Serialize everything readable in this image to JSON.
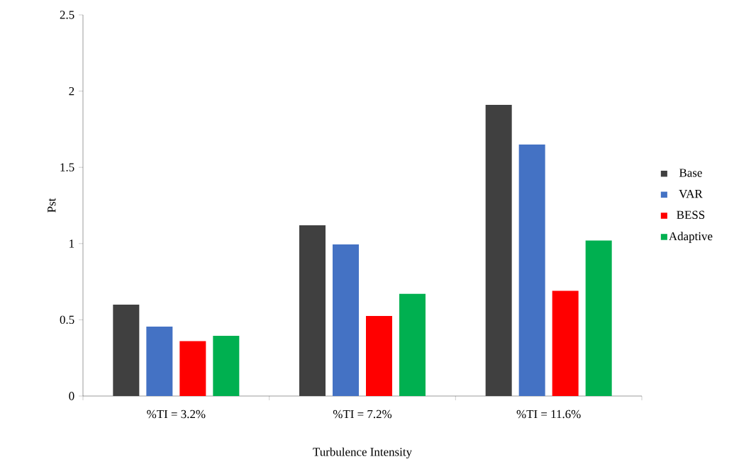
{
  "chart_data": {
    "type": "bar",
    "xlabel": "Turbulence Intensity",
    "ylabel": "Pst",
    "categories": [
      "%TI = 3.2%",
      "%TI = 7.2%",
      "%TI = 11.6%"
    ],
    "series": [
      {
        "name": "Base",
        "color": "#404040",
        "values": [
          0.6,
          1.12,
          1.91
        ]
      },
      {
        "name": "VAR",
        "color": "#4472c4",
        "values": [
          0.455,
          0.995,
          1.65
        ]
      },
      {
        "name": "BESS",
        "color": "#ff0000",
        "values": [
          0.36,
          0.525,
          0.69
        ]
      },
      {
        "name": "Adaptive",
        "color": "#00b050",
        "values": [
          0.395,
          0.67,
          1.02
        ]
      }
    ],
    "ylim": [
      0,
      2.5
    ],
    "yticks": [
      0,
      0.5,
      1,
      1.5,
      2,
      2.5
    ],
    "grid": false,
    "legend": "right"
  }
}
